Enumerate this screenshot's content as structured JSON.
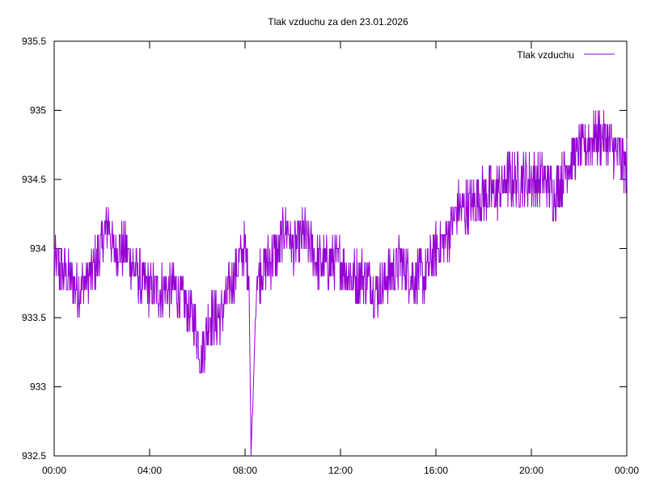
{
  "chart_data": {
    "type": "line",
    "title": "Tlak vzduchu za den 23.01.2026",
    "xlabel": "",
    "ylabel": "",
    "xlim": [
      "00:00",
      "24:00"
    ],
    "ylim": [
      932.5,
      935.5
    ],
    "x_tick_labels": [
      "00:00",
      "04:00",
      "08:00",
      "12:00",
      "16:00",
      "20:00",
      "00:00"
    ],
    "y_tick_labels": [
      "932.5",
      "933",
      "933.5",
      "934",
      "934.5",
      "935",
      "935.5"
    ],
    "y_ticks": [
      932.5,
      933,
      933.5,
      934,
      934.5,
      935,
      935.5
    ],
    "grid": false,
    "legend_position": "top-right",
    "series": [
      {
        "name": "Tlak vzduchu",
        "color": "#9400d3",
        "x": [
          "00:00",
          "00:30",
          "01:00",
          "01:30",
          "02:00",
          "02:15",
          "02:30",
          "03:00",
          "03:30",
          "04:00",
          "04:30",
          "05:00",
          "05:30",
          "06:00",
          "06:10",
          "06:30",
          "07:00",
          "07:30",
          "08:00",
          "08:10",
          "08:15",
          "08:30",
          "09:00",
          "09:30",
          "09:40",
          "10:00",
          "10:30",
          "11:00",
          "11:30",
          "12:00",
          "12:30",
          "13:00",
          "13:30",
          "14:00",
          "14:30",
          "15:00",
          "15:30",
          "16:00",
          "16:30",
          "17:00",
          "17:30",
          "18:00",
          "18:30",
          "19:00",
          "19:30",
          "20:00",
          "20:30",
          "21:00",
          "21:30",
          "22:00",
          "22:30",
          "23:00",
          "23:30",
          "24:00"
        ],
        "values": [
          933.9,
          933.8,
          933.7,
          933.8,
          934.0,
          934.2,
          934.0,
          934.0,
          933.8,
          933.7,
          933.7,
          933.7,
          933.6,
          933.4,
          933.2,
          933.5,
          933.5,
          933.8,
          934.0,
          933.8,
          932.5,
          933.8,
          933.9,
          934.0,
          934.2,
          934.0,
          934.1,
          933.9,
          933.9,
          933.9,
          933.8,
          933.8,
          933.7,
          933.8,
          933.9,
          933.8,
          933.8,
          934.0,
          934.1,
          934.3,
          934.3,
          934.4,
          934.4,
          934.5,
          934.5,
          934.5,
          934.5,
          934.4,
          934.6,
          934.7,
          934.8,
          934.8,
          934.7,
          934.6
        ],
        "noise_amplitude": 0.12
      }
    ]
  }
}
